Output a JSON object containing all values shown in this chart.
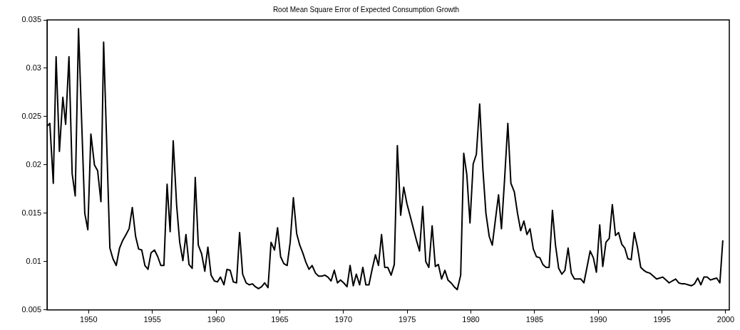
{
  "chart_data": {
    "type": "line",
    "title": "Root Mean Square Error of Expected Consumption Growth",
    "x": [
      1946.74,
      1946.96,
      1947.23,
      1947.45,
      1947.71,
      1947.98,
      1948.2,
      1948.46,
      1948.71,
      1948.95,
      1949.21,
      1949.7,
      1949.94,
      1950.18,
      1950.46,
      1950.71,
      1950.97,
      1951.18,
      1951.67,
      1951.91,
      1952.17,
      1952.43,
      1952.68,
      1952.94,
      1953.18,
      1953.43,
      1953.69,
      1953.93,
      1954.17,
      1954.42,
      1954.66,
      1954.9,
      1955.17,
      1955.43,
      1955.67,
      1955.91,
      1956.16,
      1956.4,
      1956.64,
      1956.91,
      1957.15,
      1957.4,
      1957.64,
      1957.88,
      1958.13,
      1958.37,
      1958.61,
      1958.87,
      1959.12,
      1959.36,
      1959.61,
      1959.87,
      1960.11,
      1960.35,
      1960.62,
      1960.86,
      1961.11,
      1961.36,
      1961.61,
      1961.85,
      1962.09,
      1962.36,
      1962.6,
      1962.85,
      1963.09,
      1963.33,
      1963.58,
      1963.82,
      1964.08,
      1964.32,
      1964.59,
      1964.83,
      1965.07,
      1965.32,
      1965.58,
      1965.82,
      1966.07,
      1966.33,
      1966.57,
      1966.81,
      1967.06,
      1967.3,
      1967.54,
      1967.81,
      1968.05,
      1968.3,
      1968.54,
      1968.78,
      1969.03,
      1969.28,
      1969.53,
      1969.77,
      1970.02,
      1970.28,
      1970.52,
      1970.77,
      1971.01,
      1971.27,
      1971.52,
      1971.76,
      1972.0,
      1972.25,
      1972.51,
      1972.75,
      1972.99,
      1973.24,
      1973.48,
      1973.74,
      1973.99,
      1974.23,
      1974.49,
      1974.73,
      1974.98,
      1975.24,
      1975.49,
      1975.73,
      1975.97,
      1976.22,
      1976.46,
      1976.7,
      1976.96,
      1977.21,
      1977.45,
      1977.7,
      1977.96,
      1978.2,
      1978.44,
      1978.69,
      1978.93,
      1979.2,
      1979.44,
      1979.68,
      1979.93,
      1980.18,
      1980.43,
      1980.69,
      1980.94,
      1981.18,
      1981.44,
      1981.68,
      1981.93,
      1982.17,
      1982.4,
      1982.64,
      1982.9,
      1983.14,
      1983.41,
      1983.66,
      1983.91,
      1984.16,
      1984.4,
      1984.64,
      1984.9,
      1985.15,
      1985.41,
      1985.65,
      1985.9,
      1986.14,
      1986.4,
      1986.64,
      1986.89,
      1987.14,
      1987.38,
      1987.63,
      1987.88,
      1988.13,
      1988.37,
      1988.63,
      1988.87,
      1989.11,
      1989.36,
      1989.61,
      1989.85,
      1990.11,
      1990.35,
      1990.6,
      1990.86,
      1991.1,
      1991.35,
      1991.59,
      1991.84,
      1992.08,
      1992.32,
      1992.58,
      1992.82,
      1993.07,
      1993.33,
      1993.57,
      1993.81,
      1994.06,
      1994.32,
      1994.57,
      1994.81,
      1995.05,
      1995.32,
      1995.56,
      1995.8,
      1996.07,
      1996.31,
      1996.56,
      1996.8,
      1997.06,
      1997.3,
      1997.55,
      1997.8,
      1998.05,
      1998.29,
      1998.54,
      1998.81,
      1999.04,
      1999.29,
      1999.54,
      1999.77
    ],
    "series": [
      {
        "color": "#000000",
        "values": [
          0.024,
          0.0243,
          0.0181,
          0.0312,
          0.0214,
          0.027,
          0.0242,
          0.0312,
          0.0191,
          0.0168,
          0.0341,
          0.015,
          0.0133,
          0.0232,
          0.02,
          0.0194,
          0.0162,
          0.0327,
          0.0114,
          0.0103,
          0.0096,
          0.0114,
          0.0122,
          0.0128,
          0.0134,
          0.0156,
          0.0126,
          0.0113,
          0.0112,
          0.0096,
          0.0092,
          0.0109,
          0.0112,
          0.0105,
          0.0096,
          0.0096,
          0.018,
          0.0131,
          0.0225,
          0.0158,
          0.012,
          0.0101,
          0.0128,
          0.0097,
          0.0093,
          0.0187,
          0.0117,
          0.0108,
          0.009,
          0.0115,
          0.0086,
          0.008,
          0.0079,
          0.0084,
          0.0076,
          0.0092,
          0.0091,
          0.0079,
          0.0078,
          0.013,
          0.0087,
          0.0078,
          0.0076,
          0.0077,
          0.0074,
          0.0072,
          0.0074,
          0.0078,
          0.0073,
          0.012,
          0.0112,
          0.0135,
          0.0105,
          0.0098,
          0.0096,
          0.012,
          0.0166,
          0.0129,
          0.0117,
          0.0109,
          0.0099,
          0.0092,
          0.0096,
          0.0088,
          0.0085,
          0.0085,
          0.0086,
          0.0084,
          0.008,
          0.0091,
          0.0078,
          0.0081,
          0.0078,
          0.0074,
          0.0096,
          0.0075,
          0.0087,
          0.0076,
          0.0094,
          0.0076,
          0.0076,
          0.0092,
          0.0107,
          0.0096,
          0.0128,
          0.0094,
          0.0094,
          0.0086,
          0.0097,
          0.022,
          0.0148,
          0.0177,
          0.016,
          0.0147,
          0.0134,
          0.0122,
          0.0111,
          0.0157,
          0.01,
          0.0094,
          0.0137,
          0.0095,
          0.0097,
          0.0082,
          0.0091,
          0.0081,
          0.0078,
          0.0074,
          0.0071,
          0.0086,
          0.0212,
          0.019,
          0.014,
          0.0201,
          0.0211,
          0.0263,
          0.0196,
          0.015,
          0.0126,
          0.0117,
          0.0144,
          0.0169,
          0.0134,
          0.0184,
          0.0243,
          0.0181,
          0.0172,
          0.015,
          0.0132,
          0.0142,
          0.0128,
          0.0134,
          0.0113,
          0.0105,
          0.0104,
          0.0097,
          0.0094,
          0.0094,
          0.0153,
          0.0117,
          0.0093,
          0.0087,
          0.0091,
          0.0114,
          0.0088,
          0.0082,
          0.0082,
          0.0082,
          0.0078,
          0.0094,
          0.0111,
          0.0104,
          0.0089,
          0.0138,
          0.0095,
          0.012,
          0.0124,
          0.0159,
          0.0127,
          0.013,
          0.0118,
          0.0114,
          0.0103,
          0.0102,
          0.013,
          0.0115,
          0.0094,
          0.0091,
          0.0089,
          0.0088,
          0.0085,
          0.0082,
          0.0083,
          0.0084,
          0.0081,
          0.0078,
          0.008,
          0.0082,
          0.0078,
          0.0077,
          0.0077,
          0.0076,
          0.0075,
          0.0077,
          0.0083,
          0.0076,
          0.0084,
          0.0084,
          0.0081,
          0.0082,
          0.0083,
          0.0078,
          0.0122
        ]
      }
    ],
    "xlim": [
      1946.74,
      2000.28
    ],
    "xticks": [
      1950,
      1955,
      1960,
      1965,
      1970,
      1975,
      1980,
      1985,
      1990,
      1995,
      2000
    ],
    "ylim": [
      0.005,
      0.035
    ],
    "yticks": [
      0.005,
      0.01,
      0.015,
      0.02,
      0.025,
      0.03,
      0.035
    ],
    "grid": false,
    "legend": false,
    "marker": "none",
    "line_style": "solid"
  }
}
